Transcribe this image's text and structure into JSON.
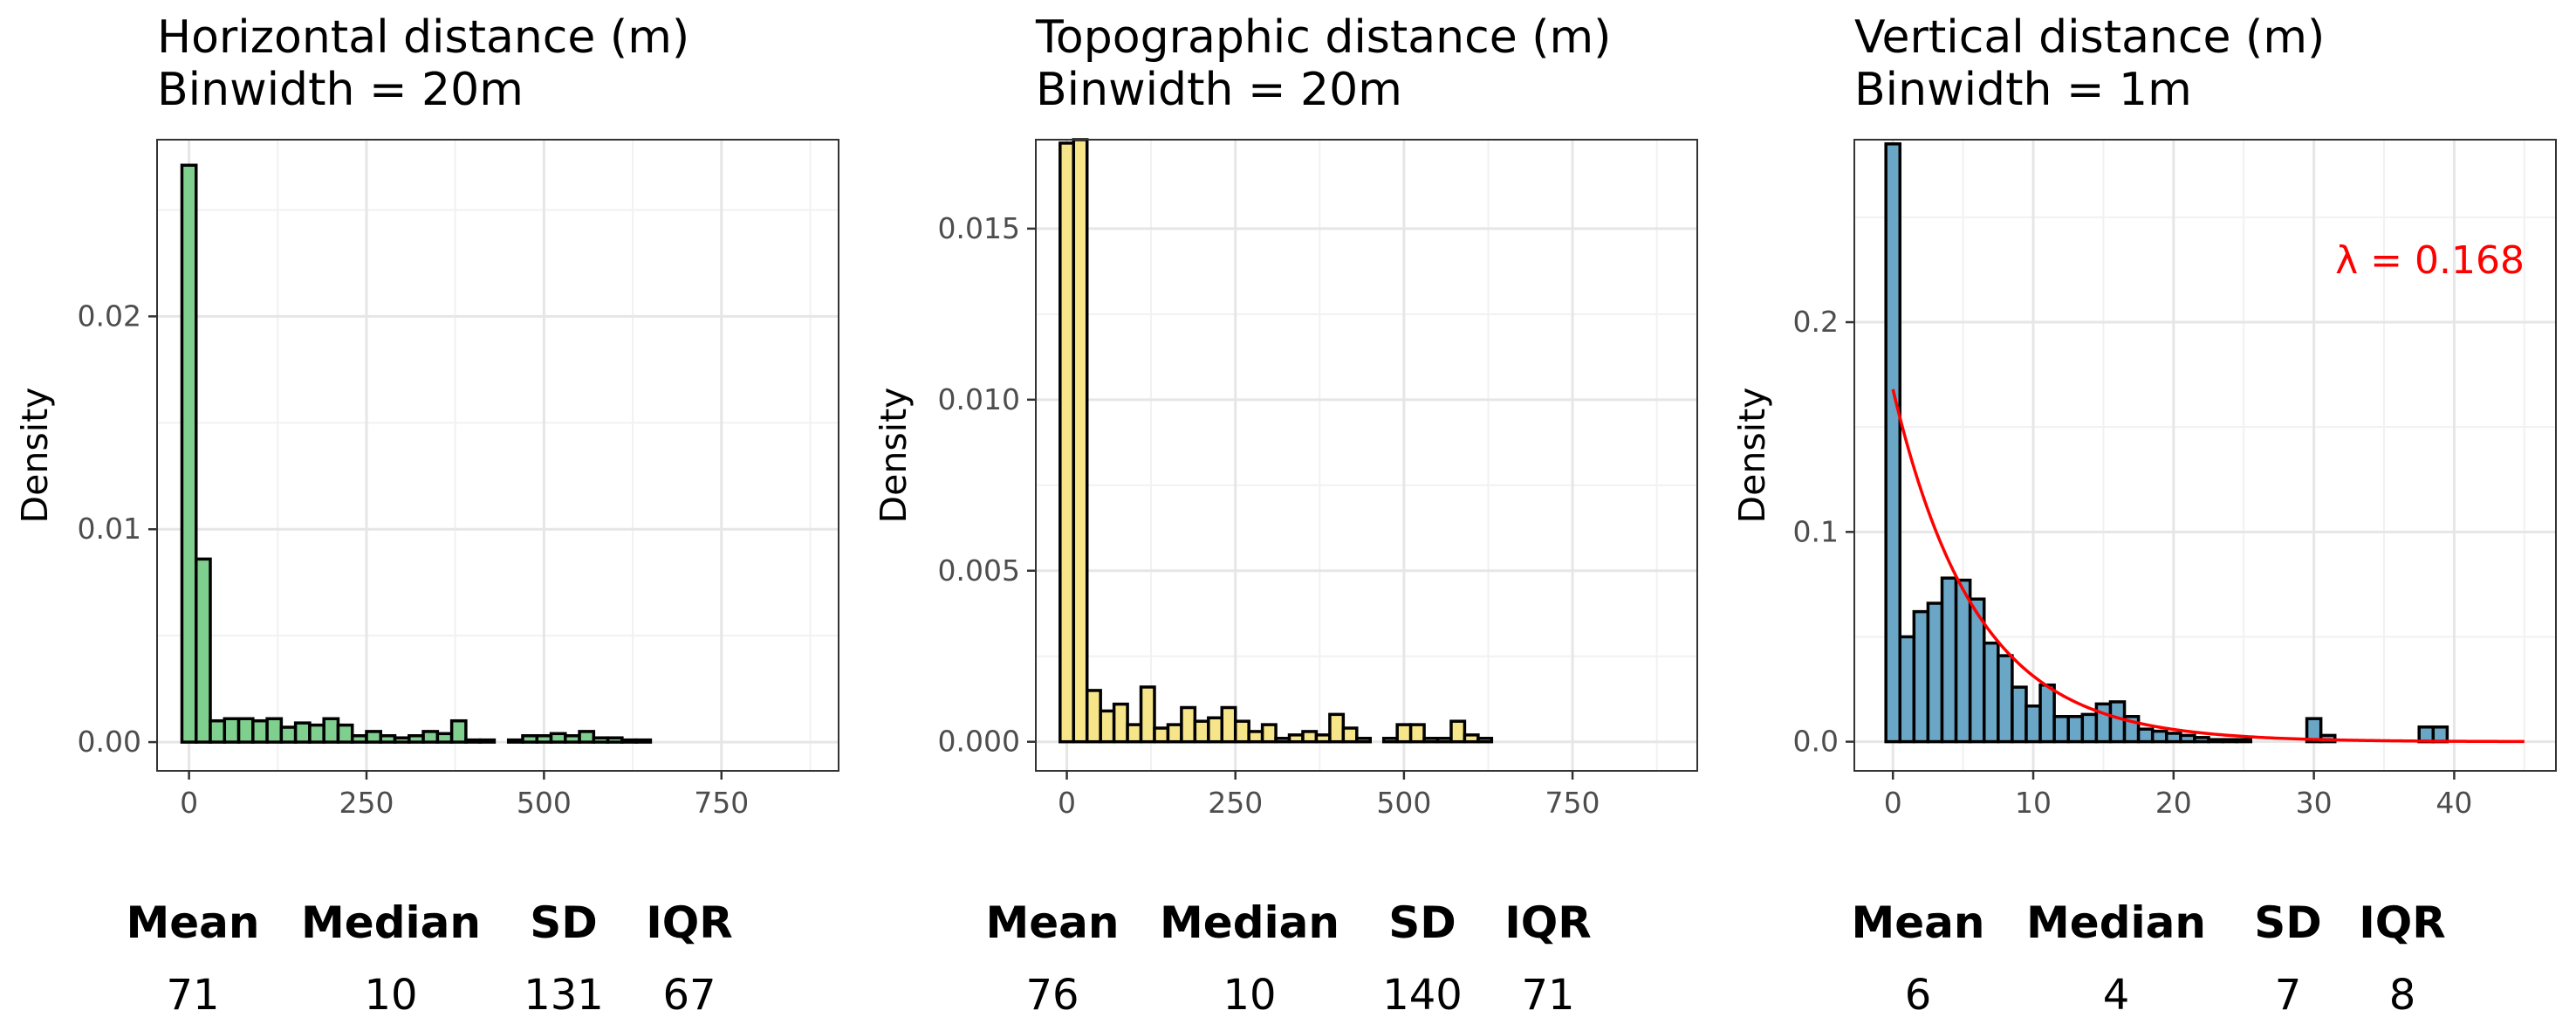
{
  "chart_data": [
    {
      "type": "bar",
      "title": "Horizontal distance (m)",
      "subtitle": "Binwidth = 20m",
      "ylabel": "Density",
      "xlabel": "",
      "xlim": [
        -45,
        915
      ],
      "ylim": [
        -0.00135,
        0.0283
      ],
      "xticks": [
        0,
        250,
        500,
        750
      ],
      "yticks": [
        0.0,
        0.01,
        0.02
      ],
      "ytick_labels": [
        "0.00",
        "0.01",
        "0.02"
      ],
      "minor_x": [
        125,
        375,
        625,
        875
      ],
      "minor_y": [
        0.005,
        0.015,
        0.025
      ],
      "binwidth": 20,
      "bin_start": -10,
      "fill": "#7fcf8e",
      "values": [
        0.0271,
        0.0086,
        0.001,
        0.0011,
        0.0011,
        0.001,
        0.0011,
        0.0007,
        0.0009,
        0.0008,
        0.0011,
        0.0008,
        0.0003,
        0.0005,
        0.0003,
        0.0002,
        0.0003,
        0.0005,
        0.0004,
        0.001,
        0.0001,
        0.0001,
        0.0,
        0.0001,
        0.0003,
        0.0003,
        0.0004,
        0.0003,
        0.0005,
        0.0002,
        0.0002,
        0.0001,
        0.0001,
        0.0,
        0.0,
        0.0,
        0.0,
        0.0,
        0.0,
        0.0,
        0.0,
        0.0,
        0.0,
        0.0,
        0.0,
        0.0
      ],
      "stats": {
        "headers": [
          "Mean",
          "Median",
          "SD",
          "IQR"
        ],
        "values": [
          "71",
          "10",
          "131",
          "67"
        ]
      }
    },
    {
      "type": "bar",
      "title": "Topographic distance (m)",
      "subtitle": "Binwidth = 20m",
      "ylabel": "Density",
      "xlabel": "",
      "xlim": [
        -46,
        935
      ],
      "ylim": [
        -0.00085,
        0.0176
      ],
      "xticks": [
        0,
        250,
        500,
        750
      ],
      "yticks": [
        0.0,
        0.005,
        0.01,
        0.015
      ],
      "ytick_labels": [
        "0.000",
        "0.005",
        "0.010",
        "0.015"
      ],
      "minor_x": [
        125,
        375,
        625,
        875
      ],
      "minor_y": [
        0.0025,
        0.0075,
        0.0125
      ],
      "binwidth": 20,
      "bin_start": -10,
      "fill": "#f7e58a",
      "values": [
        0.0175,
        0.0176,
        0.0015,
        0.0009,
        0.0011,
        0.0005,
        0.0016,
        0.0004,
        0.0005,
        0.001,
        0.0006,
        0.0007,
        0.001,
        0.0006,
        0.0003,
        0.0005,
        0.0001,
        0.0002,
        0.0003,
        0.0002,
        0.0008,
        0.0004,
        0.0001,
        0.0,
        0.0001,
        0.0005,
        0.0005,
        0.0001,
        0.0001,
        0.0006,
        0.0002,
        0.0001,
        0.0,
        0.0,
        0.0,
        0.0,
        0.0,
        0.0,
        0.0,
        0.0,
        0.0,
        0.0,
        0.0,
        0.0,
        0.0,
        0.0,
        0.0
      ],
      "stats": {
        "headers": [
          "Mean",
          "Median",
          "SD",
          "IQR"
        ],
        "values": [
          "76",
          "10",
          "140",
          "71"
        ]
      }
    },
    {
      "type": "bar",
      "title": "Vertical distance (m)",
      "subtitle": "Binwidth = 1m",
      "ylabel": "Density",
      "xlabel": "",
      "xlim": [
        -2.75,
        47.25
      ],
      "ylim": [
        -0.0139,
        0.287
      ],
      "xticks": [
        0,
        10,
        20,
        30,
        40
      ],
      "yticks": [
        0.0,
        0.1,
        0.2
      ],
      "ytick_labels": [
        "0.0",
        "0.1",
        "0.2"
      ],
      "minor_x": [
        5,
        15,
        25,
        35,
        45
      ],
      "minor_y": [
        0.05,
        0.15,
        0.25
      ],
      "binwidth": 1,
      "bin_start": -0.5,
      "fill": "#6aa6c6",
      "values": [
        0.285,
        0.05,
        0.062,
        0.066,
        0.078,
        0.077,
        0.068,
        0.047,
        0.041,
        0.026,
        0.017,
        0.027,
        0.012,
        0.012,
        0.013,
        0.018,
        0.019,
        0.012,
        0.006,
        0.005,
        0.004,
        0.003,
        0.002,
        0.001,
        0.001,
        0.001,
        0.0,
        0.0,
        0.0,
        0.0,
        0.011,
        0.003,
        0.0,
        0.0,
        0.0,
        0.0,
        0.0,
        0.0,
        0.007,
        0.007,
        0.0,
        0.0,
        0.0,
        0.0,
        0.0
      ],
      "fit": {
        "type": "exponential",
        "lambda": 0.168,
        "x_range": [
          0,
          45
        ],
        "color": "#ff0000"
      },
      "annotation": "λ = 0.168",
      "stats": {
        "headers": [
          "Mean",
          "Median",
          "SD",
          "IQR"
        ],
        "values": [
          "6",
          "4",
          "7",
          "8"
        ]
      }
    }
  ]
}
